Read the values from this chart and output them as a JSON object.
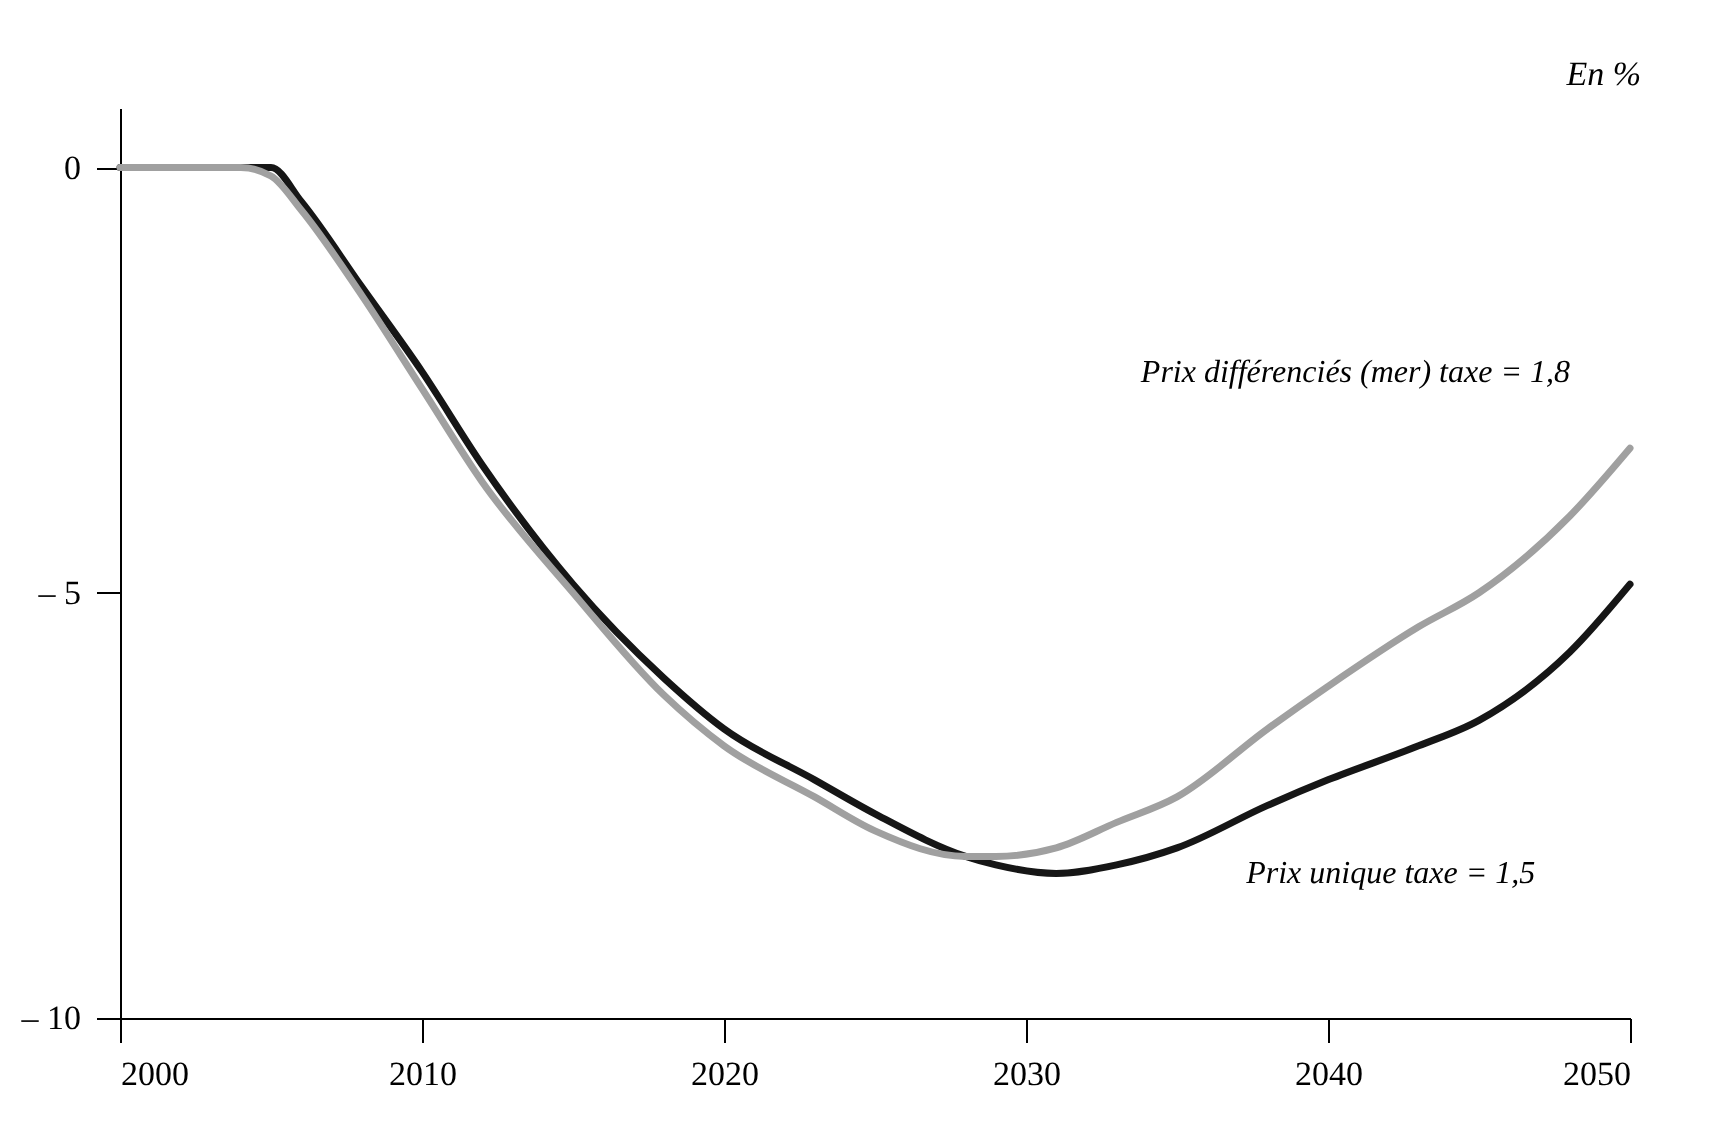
{
  "chart_data": {
    "type": "line",
    "ylabel": "En %",
    "x": [
      2000,
      2004,
      2005,
      2006,
      2008,
      2010,
      2012,
      2015,
      2018,
      2020,
      2023,
      2025,
      2028,
      2029,
      2031,
      2033,
      2035,
      2038,
      2040,
      2043,
      2045,
      2048,
      2050
    ],
    "series": [
      {
        "name": "Prix unique taxe = 1,5",
        "color": "#161616",
        "values": [
          0,
          0,
          0,
          -0.4,
          -1.4,
          -2.4,
          -3.5,
          -4.9,
          -6.0,
          -6.6,
          -7.2,
          -7.6,
          -8.1,
          -8.2,
          -8.3,
          -8.2,
          -8.0,
          -7.5,
          -7.2,
          -6.8,
          -6.5,
          -5.7,
          -4.9
        ]
      },
      {
        "name": "Prix différenciés (mer) taxe = 1,8",
        "color": "#a0a0a0",
        "values": [
          0,
          0,
          -0.1,
          -0.5,
          -1.5,
          -2.6,
          -3.7,
          -5.0,
          -6.2,
          -6.8,
          -7.4,
          -7.8,
          -8.1,
          -8.1,
          -8.0,
          -7.7,
          -7.4,
          -6.6,
          -6.1,
          -5.4,
          -5.0,
          -4.1,
          -3.3
        ]
      }
    ],
    "xlim": [
      2000,
      2050
    ],
    "xticks": [
      2000,
      2010,
      2020,
      2030,
      2040,
      2050
    ],
    "ylim": [
      -10,
      0.7
    ],
    "yticks": [
      {
        "value": 0,
        "label": "0"
      },
      {
        "value": -5,
        "label": "– 5"
      },
      {
        "value": -10,
        "label": "– 10"
      }
    ],
    "grid": false,
    "legend": false,
    "marker": "none",
    "line_style": "solid"
  }
}
